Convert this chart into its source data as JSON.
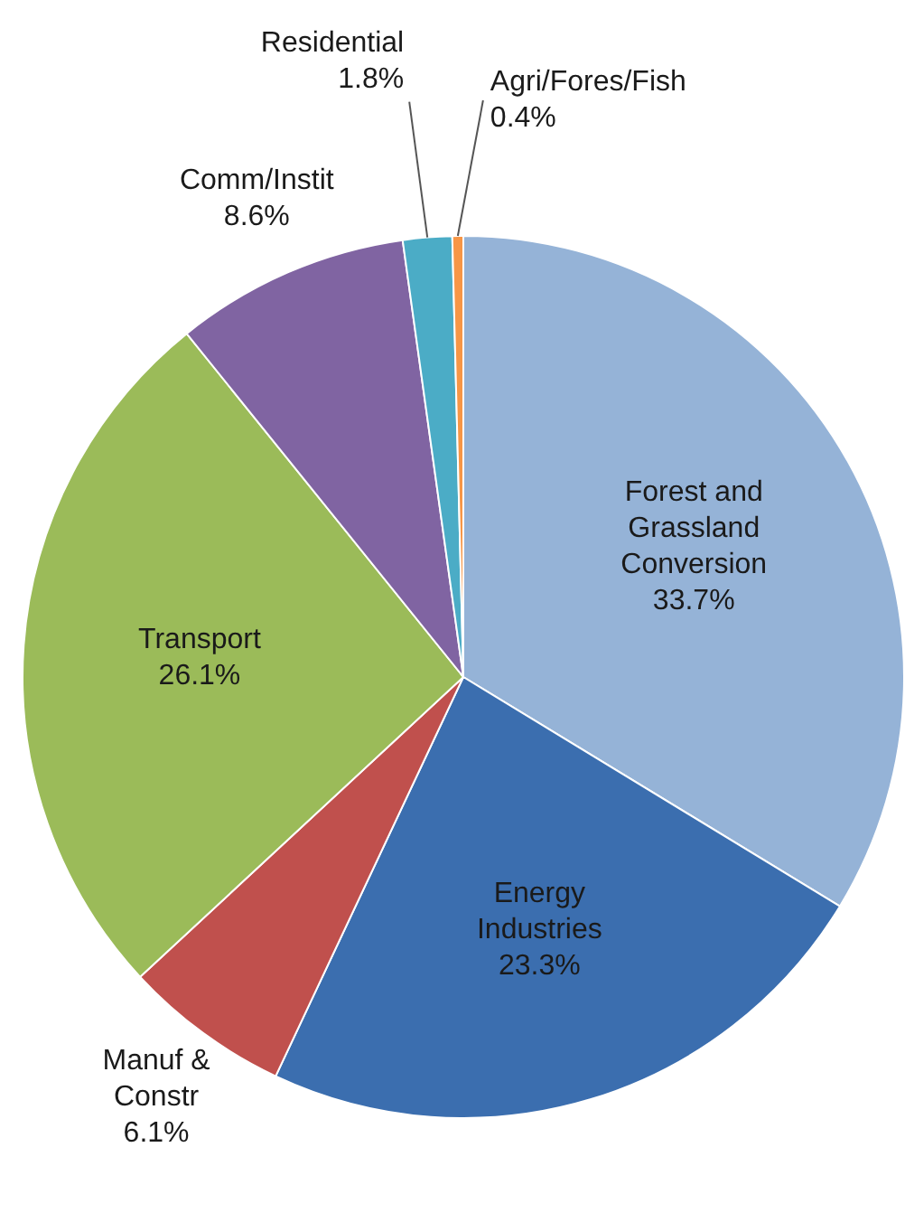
{
  "chart_data": {
    "type": "pie",
    "categories": [
      "Forest and Grassland Conversion",
      "Energy Industries",
      "Manuf & Constr",
      "Transport",
      "Comm/Instit",
      "Residential",
      "Agri/Fores/Fish"
    ],
    "values": [
      33.7,
      23.3,
      6.1,
      26.1,
      8.6,
      1.8,
      0.4
    ],
    "colors": [
      "#95b3d7",
      "#3b6eaf",
      "#c0504d",
      "#9bbb59",
      "#8064a2",
      "#4bacc6",
      "#f79646"
    ],
    "value_labels": [
      "33.7%",
      "23.3%",
      "6.1%",
      "26.1%",
      "8.6%",
      "1.8%",
      "0.4%"
    ],
    "legend": false
  }
}
